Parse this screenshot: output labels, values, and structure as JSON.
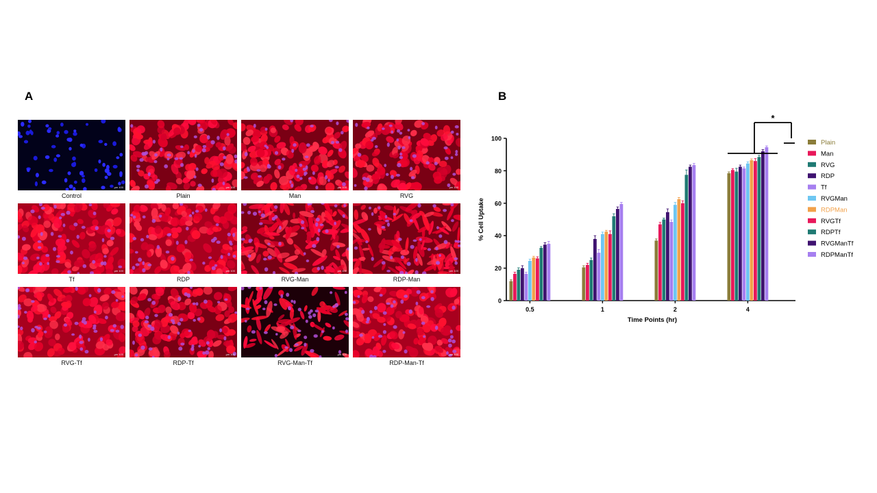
{
  "panels": {
    "a_label": "A",
    "b_label": "B"
  },
  "micrographs": {
    "scale_text": "µm 100",
    "items": [
      {
        "label": "Control",
        "stain": "nuclei-only"
      },
      {
        "label": "Plain",
        "stain": "red-medium"
      },
      {
        "label": "Man",
        "stain": "red-medium"
      },
      {
        "label": "RVG",
        "stain": "red-medium"
      },
      {
        "label": "Tf",
        "stain": "red-bright"
      },
      {
        "label": "RDP",
        "stain": "red-bright"
      },
      {
        "label": "RVG-Man",
        "stain": "red-elongated"
      },
      {
        "label": "RDP-Man",
        "stain": "red-elongated"
      },
      {
        "label": "RVG-Tf",
        "stain": "red-bright"
      },
      {
        "label": "RDP-Tf",
        "stain": "red-medium"
      },
      {
        "label": "RVG-Man-Tf",
        "stain": "red-sparse"
      },
      {
        "label": "RDP-Man-Tf",
        "stain": "red-bright"
      }
    ]
  },
  "chart_data": {
    "type": "bar",
    "title": "",
    "xlabel": "Time Points (hr)",
    "ylabel": "% Cell Uptake",
    "ylim": [
      0,
      100
    ],
    "yticks": [
      0,
      20,
      40,
      60,
      80,
      100
    ],
    "categories": [
      "0.5",
      "1",
      "2",
      "4"
    ],
    "legend_position": "right",
    "grid": false,
    "series": [
      {
        "name": "Plain",
        "color": "#8b7d3a",
        "label_color": "#8b7d3a",
        "values": [
          12,
          20.5,
          37,
          78.5
        ],
        "errors": [
          0.8,
          1,
          1,
          0.8
        ]
      },
      {
        "name": "Man",
        "color": "#e8185a",
        "label_color": "#000000",
        "values": [
          16.5,
          22,
          47,
          80.5
        ],
        "errors": [
          1,
          1,
          1.2,
          0.8
        ]
      },
      {
        "name": "RVG",
        "color": "#1f7a73",
        "label_color": "#000000",
        "values": [
          19,
          25,
          50,
          79.5
        ],
        "errors": [
          1.2,
          1.2,
          0.8,
          2
        ]
      },
      {
        "name": "RDP",
        "color": "#3f1370",
        "label_color": "#000000",
        "values": [
          20,
          38,
          54.5,
          82.5
        ],
        "errors": [
          1.5,
          2,
          2,
          1
        ]
      },
      {
        "name": "Tf",
        "color": "#a67ff0",
        "label_color": "#000000",
        "values": [
          16.5,
          29.5,
          48.5,
          81.5
        ],
        "errors": [
          1,
          2,
          1.2,
          0.8
        ]
      },
      {
        "name": "RVGMan",
        "color": "#6ec6f2",
        "label_color": "#000000",
        "values": [
          24.5,
          41,
          59,
          84.5
        ],
        "errors": [
          1,
          1.2,
          1.5,
          1
        ]
      },
      {
        "name": "RDPMan",
        "color": "#f2a14a",
        "label_color": "#f2a14a",
        "values": [
          26.5,
          42.5,
          62.5,
          86.5
        ],
        "errors": [
          0.8,
          0.8,
          1,
          0.8
        ]
      },
      {
        "name": "RVGTf",
        "color": "#e8185a",
        "label_color": "#000000",
        "values": [
          26,
          41,
          60,
          86
        ],
        "errors": [
          1,
          2,
          1.5,
          1.5
        ]
      },
      {
        "name": "RDPTf",
        "color": "#1f7a73",
        "label_color": "#000000",
        "values": [
          32.5,
          52,
          77.5,
          88.5
        ],
        "errors": [
          0.8,
          1.5,
          3,
          1
        ]
      },
      {
        "name": "RVGManTf",
        "color": "#3f1370",
        "label_color": "#000000",
        "values": [
          34.5,
          56.5,
          82.5,
          92
        ],
        "errors": [
          1.2,
          1.2,
          1,
          1
        ]
      },
      {
        "name": "RDPManTf",
        "color": "#a67ff0",
        "label_color": "#000000",
        "values": [
          35,
          59.5,
          83.5,
          94.5
        ],
        "errors": [
          1.5,
          1,
          1,
          0.8
        ]
      }
    ],
    "annotations": [
      {
        "text": "*"
      }
    ]
  }
}
